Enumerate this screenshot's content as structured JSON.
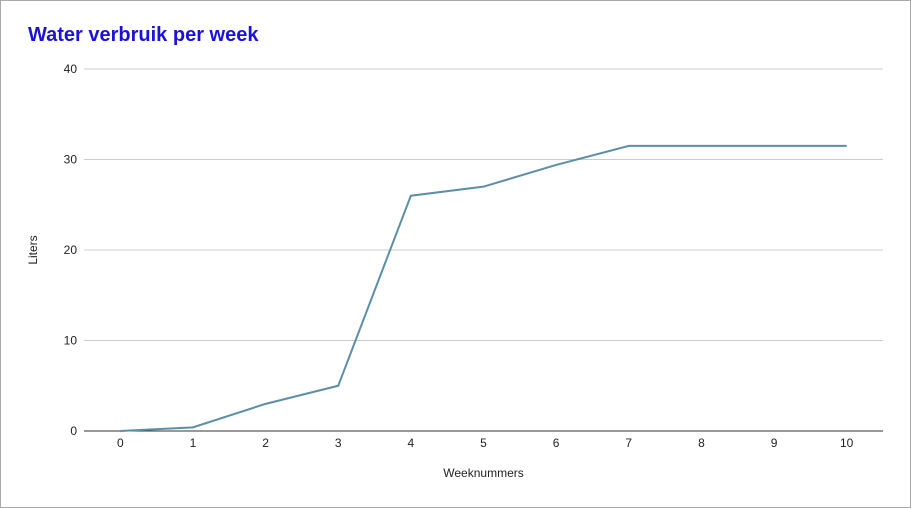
{
  "chart_data": {
    "type": "line",
    "title": "Water verbruik per week",
    "xlabel": "Weeknummers",
    "ylabel": "Liters",
    "x": [
      0,
      1,
      2,
      3,
      4,
      5,
      6,
      7,
      8,
      9,
      10
    ],
    "series": [
      {
        "values": [
          0,
          0.4,
          3,
          5,
          26,
          27,
          29.4,
          31.5,
          31.5,
          31.5,
          31.5
        ]
      }
    ],
    "xlim": [
      -0.5,
      10.5
    ],
    "ylim": [
      0,
      40
    ],
    "yticks": [
      0,
      10,
      20,
      30,
      40
    ],
    "xticks": [
      "0",
      "1",
      "2",
      "3",
      "4",
      "5",
      "6",
      "7",
      "8",
      "9",
      "10"
    ],
    "grid": true,
    "legend": "none",
    "colors": {
      "line": "#5b8fa8",
      "title": "#1a12d9",
      "grid": "#cccccc",
      "axis": "#333333"
    }
  }
}
